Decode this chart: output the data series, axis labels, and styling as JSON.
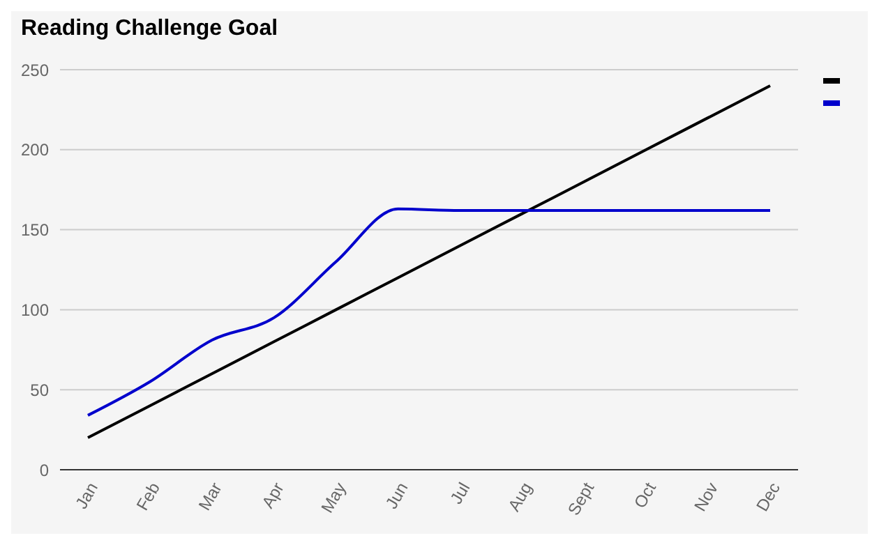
{
  "chart_data": {
    "type": "line",
    "title": "Reading Challenge Goal",
    "categories": [
      "Jan",
      "Feb",
      "Mar",
      "Apr",
      "May",
      "Jun",
      "Jul",
      "Aug",
      "Sept",
      "Oct",
      "Nov",
      "Dec"
    ],
    "series": [
      {
        "color": "#000000",
        "values": [
          20,
          40,
          60,
          80,
          100,
          120,
          140,
          160,
          180,
          200,
          220,
          240
        ]
      },
      {
        "color": "#0000cc",
        "values": [
          34,
          55,
          81,
          95,
          130,
          163,
          162,
          162,
          162,
          162,
          162,
          162
        ]
      }
    ],
    "ylim": [
      0,
      250
    ],
    "yticks": [
      0,
      50,
      100,
      150,
      200,
      250
    ],
    "grid": "y",
    "marker": "none",
    "line_style": "solid"
  }
}
